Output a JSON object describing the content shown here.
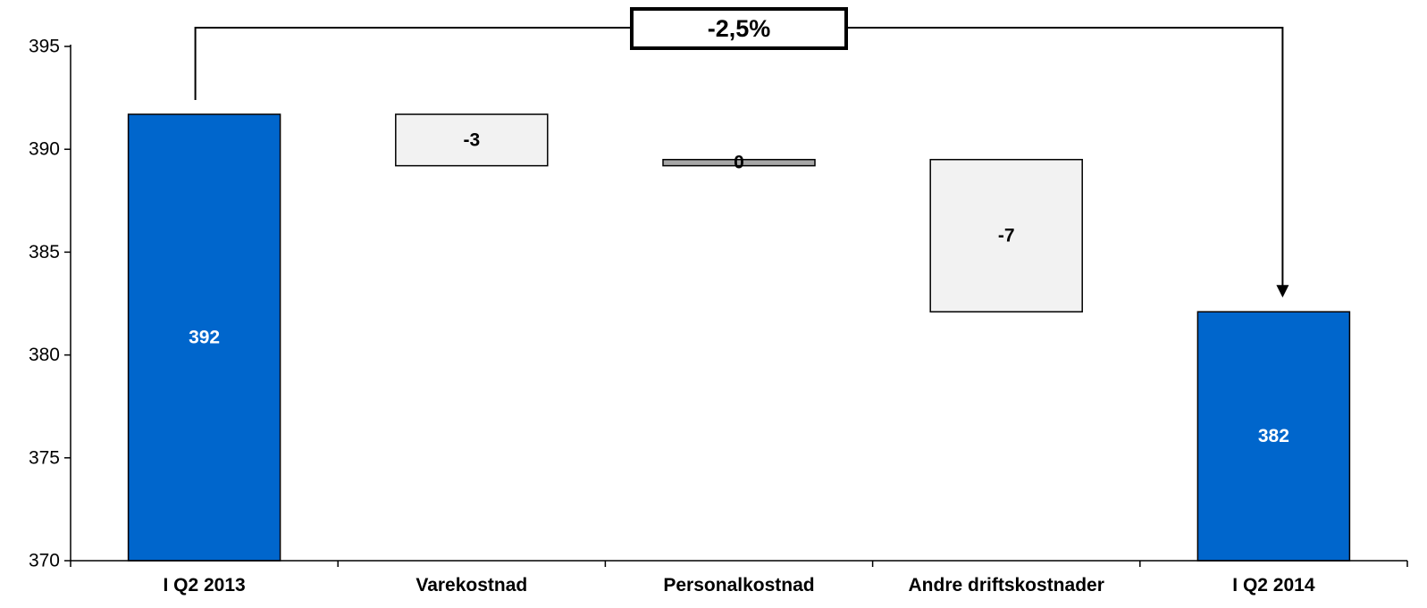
{
  "chart_data": {
    "type": "bar",
    "subtype": "waterfall",
    "categories": [
      "I Q2 2013",
      "Varekostnad",
      "Personalkostnad",
      "Andre driftskostnader",
      "I Q2 2014"
    ],
    "bars": [
      {
        "category": "I Q2 2013",
        "kind": "total",
        "start": 370,
        "end": 391.7,
        "label": "392"
      },
      {
        "category": "Varekostnad",
        "kind": "change",
        "start": 391.7,
        "end": 389.2,
        "label": "-3"
      },
      {
        "category": "Personalkostnad",
        "kind": "change",
        "start": 389.5,
        "end": 389.2,
        "label": "0"
      },
      {
        "category": "Andre driftskostnader",
        "kind": "change",
        "start": 389.5,
        "end": 382.1,
        "label": "-7"
      },
      {
        "category": "I Q2 2014",
        "kind": "total",
        "start": 370,
        "end": 382.1,
        "label": "382"
      }
    ],
    "ylim": [
      370,
      395
    ],
    "yticks": [
      "370",
      "375",
      "380",
      "385",
      "390",
      "395"
    ],
    "yticks_values": [
      370,
      375,
      380,
      385,
      390,
      395
    ],
    "annotation": {
      "text": "-2,5%",
      "from": "I Q2 2013",
      "to": "I Q2 2014"
    },
    "grid": false,
    "legend": "none",
    "colors": {
      "total_fill": "#0066CC",
      "change_fill": "#F2F2F2",
      "small_change_fill": "#A6A6A6",
      "outline": "#000000",
      "total_label": "#FFFFFF",
      "change_label": "#000000"
    }
  }
}
